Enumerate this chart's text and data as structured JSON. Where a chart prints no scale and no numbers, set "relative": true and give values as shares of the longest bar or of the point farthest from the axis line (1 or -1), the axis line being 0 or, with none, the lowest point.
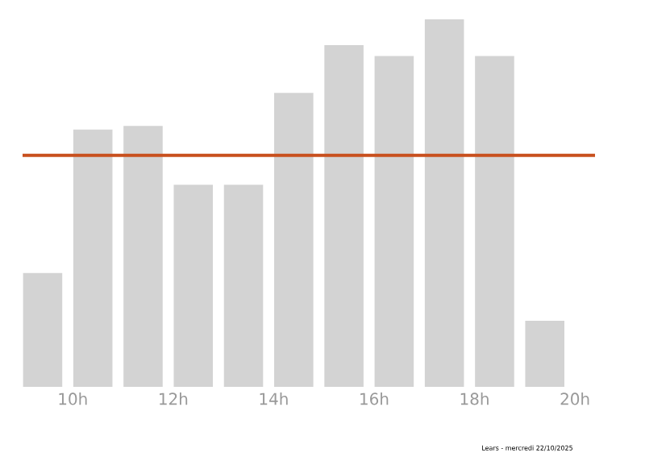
{
  "chart_data": {
    "type": "bar",
    "relative": true,
    "color": "#d3d3d3",
    "x": [
      9.4,
      10.4,
      11.4,
      12.4,
      13.4,
      14.4,
      15.4,
      16.4,
      17.4,
      18.4,
      19.4
    ],
    "values": [
      0.31,
      0.7,
      0.71,
      0.55,
      0.55,
      0.8,
      0.93,
      0.9,
      1,
      0.9,
      0.18
    ],
    "xlim": [
      9,
      20.4
    ],
    "xticks": [
      {
        "value": 10,
        "label": "10h"
      },
      {
        "value": 12,
        "label": "12h"
      },
      {
        "value": 14,
        "label": "14h"
      },
      {
        "value": 16,
        "label": "16h"
      },
      {
        "value": 18,
        "label": "18h"
      },
      {
        "value": 20,
        "label": "20h"
      }
    ],
    "ref_lines": [
      {
        "axis": "y",
        "value": 0.63,
        "color": "#c8501e"
      }
    ],
    "grid": false,
    "annotations": [
      "Lears - mercredi 22/10/2025"
    ]
  }
}
